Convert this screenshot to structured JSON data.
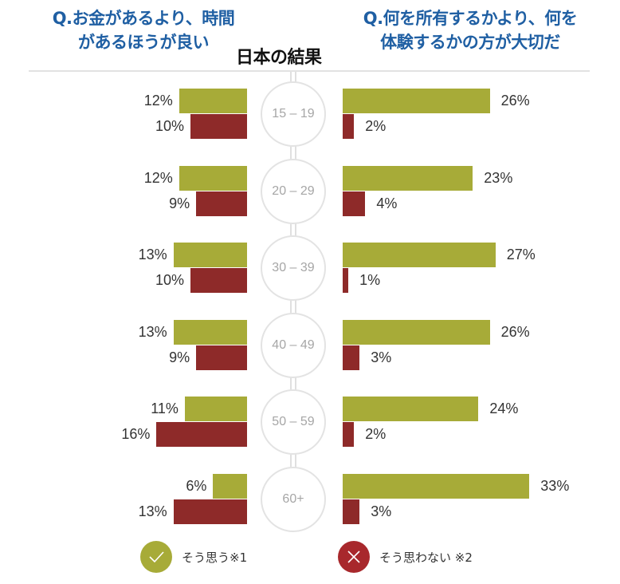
{
  "header": {
    "question_left": "Q.お金があるより、時間\nがあるほうが良い",
    "question_left_line1": "Q.お金があるより、時間",
    "question_left_line2": "があるほうが良い",
    "question_right_line1": "Q.何を所有するかより、何を",
    "question_right_line2": "体験するかの方が大切だ",
    "title": "日本の結果"
  },
  "colors": {
    "agree": "#a7ab38",
    "disagree": "#8e2a29",
    "question": "#1f5fa3",
    "circle_border": "#e3e3e3"
  },
  "legend": {
    "agree": {
      "label": "そう思う※1",
      "icon": "check-icon"
    },
    "disagree": {
      "label": "そう思わない ※2",
      "icon": "cross-icon"
    }
  },
  "chart_data": {
    "type": "bar",
    "title": "日本の結果",
    "categories": [
      "15 – 19",
      "20 – 29",
      "30 – 39",
      "40 – 49",
      "50 – 59",
      "60+"
    ],
    "panels": [
      {
        "question": "Q.お金があるより、時間があるほうが良い",
        "orientation": "horizontal-leftward",
        "series": [
          {
            "name": "そう思う※1",
            "color": "#a7ab38",
            "values": [
              12,
              12,
              13,
              13,
              11,
              6
            ]
          },
          {
            "name": "そう思わない ※2",
            "color": "#8e2a29",
            "values": [
              10,
              9,
              10,
              9,
              16,
              13
            ]
          }
        ]
      },
      {
        "question": "Q.何を所有するかより、何を体験するかの方が大切だ",
        "orientation": "horizontal-rightward",
        "series": [
          {
            "name": "そう思う※1",
            "color": "#a7ab38",
            "values": [
              26,
              23,
              27,
              26,
              24,
              33
            ]
          },
          {
            "name": "そう思わない ※2",
            "color": "#8e2a29",
            "values": [
              2,
              4,
              1,
              3,
              2,
              3
            ]
          }
        ]
      }
    ],
    "unit": "%",
    "legend_position": "bottom",
    "grid": false
  }
}
